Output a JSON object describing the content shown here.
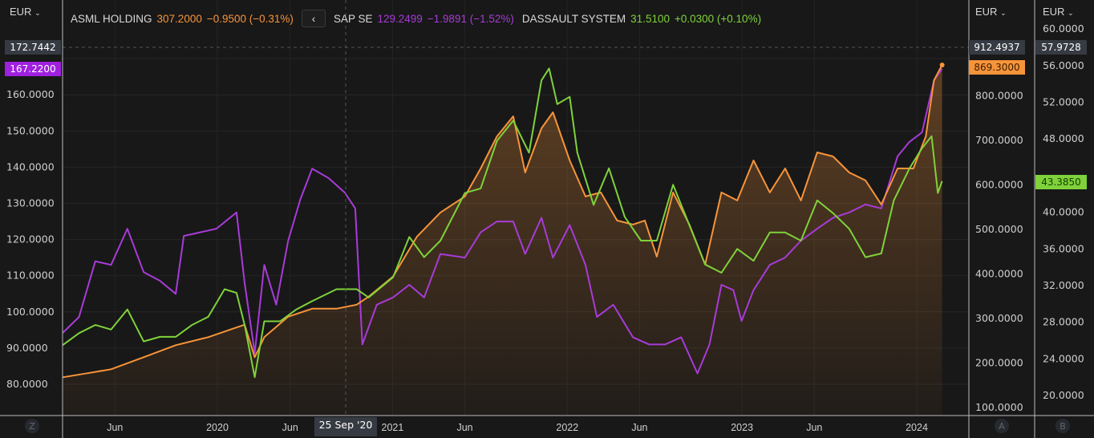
{
  "header": {
    "currency_left": "EUR",
    "currency_a": "EUR",
    "currency_b": "EUR",
    "collapse_icon": "chevron-left-icon"
  },
  "legend": [
    {
      "name": "ASML HOLDING",
      "value": "307.2000",
      "change": "−0.9500 (−0.31%)",
      "color": "#f7943a"
    },
    {
      "name": "SAP SE",
      "value": "129.2499",
      "change": "−1.9891 (−1.52%)",
      "color": "#a83bd8"
    },
    {
      "name": "DASSAULT SYSTEM",
      "value": "31.5100",
      "change": "+0.0300 (+0.10%)",
      "color": "#7fd23b"
    }
  ],
  "crosshair": {
    "date_label": "25 Sep '20",
    "left_value": "172.7442",
    "a_value": "912.4937",
    "b_value": "57.9728"
  },
  "last_price_tags": {
    "sap": "167.2200",
    "asml": "869.3000",
    "dassault": "43.3850"
  },
  "axis_buttons": {
    "left": "Z",
    "a": "A",
    "b": "B"
  },
  "chart_data": {
    "type": "line",
    "x_ticks": [
      {
        "label": "Jun",
        "date": "2019-06-01"
      },
      {
        "label": "2020",
        "date": "2020-01-01"
      },
      {
        "label": "Jun",
        "date": "2020-06-01"
      },
      {
        "label": "2021",
        "date": "2021-01-01"
      },
      {
        "label": "Jun",
        "date": "2021-06-01"
      },
      {
        "label": "2022",
        "date": "2022-01-01"
      },
      {
        "label": "Jun",
        "date": "2022-06-01"
      },
      {
        "label": "2023",
        "date": "2023-01-01"
      },
      {
        "label": "Jun",
        "date": "2023-06-01"
      },
      {
        "label": "2024",
        "date": "2024-01-01"
      }
    ],
    "axes": {
      "left": {
        "ticks": [
          "80.0000",
          "90.0000",
          "100.0000",
          "110.0000",
          "120.0000",
          "130.0000",
          "140.0000",
          "150.0000",
          "160.0000",
          "170.0000"
        ],
        "values": [
          80,
          90,
          100,
          110,
          120,
          130,
          140,
          150,
          160,
          170
        ]
      },
      "A": {
        "ticks": [
          "100.0000",
          "200.0000",
          "300.0000",
          "400.0000",
          "500.0000",
          "600.0000",
          "700.0000",
          "800.0000"
        ],
        "values": [
          100,
          200,
          300,
          400,
          500,
          600,
          700,
          800
        ]
      },
      "B": {
        "ticks": [
          "20.0000",
          "24.0000",
          "28.0000",
          "32.0000",
          "36.0000",
          "40.0000",
          "44.0000",
          "48.0000",
          "52.0000",
          "56.0000",
          "60.0000"
        ],
        "values": [
          20,
          24,
          28,
          32,
          36,
          40,
          44,
          48,
          52,
          56,
          60
        ]
      }
    },
    "grid": true,
    "series": [
      {
        "name": "SAP SE",
        "axis": "left",
        "color": "#a83bd8",
        "fill": false,
        "points": [
          [
            "2019-02-12",
            94.2
          ],
          [
            "2019-03-18",
            98.6
          ],
          [
            "2019-04-21",
            114
          ],
          [
            "2019-05-24",
            113
          ],
          [
            "2019-06-27",
            123
          ],
          [
            "2019-07-31",
            111
          ],
          [
            "2019-09-03",
            108.6
          ],
          [
            "2019-10-06",
            105
          ],
          [
            "2019-10-23",
            121
          ],
          [
            "2019-11-26",
            122
          ],
          [
            "2019-12-30",
            123
          ],
          [
            "2020-02-10",
            127.5
          ],
          [
            "2020-02-27",
            108
          ],
          [
            "2020-03-19",
            88.6
          ],
          [
            "2020-04-08",
            113
          ],
          [
            "2020-05-03",
            102
          ],
          [
            "2020-05-28",
            119.7
          ],
          [
            "2020-06-22",
            131
          ],
          [
            "2020-07-17",
            139.6
          ],
          [
            "2020-08-20",
            137
          ],
          [
            "2020-09-23",
            133
          ],
          [
            "2020-10-15",
            128.6
          ],
          [
            "2020-10-30",
            91
          ],
          [
            "2020-11-29",
            102
          ],
          [
            "2021-01-02",
            104
          ],
          [
            "2021-02-05",
            107.5
          ],
          [
            "2021-03-08",
            104
          ],
          [
            "2021-04-11",
            116
          ],
          [
            "2021-06-01",
            115
          ],
          [
            "2021-07-04",
            122
          ],
          [
            "2021-08-07",
            125
          ],
          [
            "2021-09-10",
            125
          ],
          [
            "2021-10-05",
            116
          ],
          [
            "2021-11-08",
            126
          ],
          [
            "2021-12-02",
            115
          ],
          [
            "2022-01-06",
            124
          ],
          [
            "2022-02-08",
            113
          ],
          [
            "2022-03-04",
            98.6
          ],
          [
            "2022-04-07",
            102
          ],
          [
            "2022-05-18",
            93
          ],
          [
            "2022-06-21",
            91
          ],
          [
            "2022-07-24",
            91
          ],
          [
            "2022-08-27",
            93
          ],
          [
            "2022-09-30",
            83
          ],
          [
            "2022-10-25",
            91
          ],
          [
            "2022-11-19",
            107.5
          ],
          [
            "2022-12-14",
            106
          ],
          [
            "2022-12-31",
            97.5
          ],
          [
            "2023-01-25",
            106
          ],
          [
            "2023-02-28",
            113
          ],
          [
            "2023-04-01",
            115
          ],
          [
            "2023-05-04",
            119.7
          ],
          [
            "2023-06-07",
            123
          ],
          [
            "2023-07-10",
            126
          ],
          [
            "2023-08-13",
            127.5
          ],
          [
            "2023-09-16",
            129.7
          ],
          [
            "2023-10-19",
            128.6
          ],
          [
            "2023-11-22",
            143
          ],
          [
            "2023-12-17",
            147
          ],
          [
            "2024-01-12",
            149.6
          ],
          [
            "2024-02-06",
            164
          ],
          [
            "2024-02-23",
            167.2
          ]
        ]
      },
      {
        "name": "ASML HOLDING",
        "axis": "A",
        "color": "#f7943a",
        "fill": true,
        "points": [
          [
            "2019-02-12",
            168
          ],
          [
            "2019-04-04",
            177
          ],
          [
            "2019-05-24",
            186
          ],
          [
            "2019-07-31",
            213
          ],
          [
            "2019-10-06",
            240
          ],
          [
            "2019-12-13",
            258
          ],
          [
            "2020-02-02",
            277
          ],
          [
            "2020-02-27",
            286
          ],
          [
            "2020-03-19",
            213
          ],
          [
            "2020-04-08",
            258
          ],
          [
            "2020-05-28",
            304
          ],
          [
            "2020-07-17",
            322
          ],
          [
            "2020-09-06",
            322
          ],
          [
            "2020-10-18",
            331
          ],
          [
            "2020-11-12",
            349
          ],
          [
            "2021-01-02",
            394
          ],
          [
            "2021-02-21",
            484
          ],
          [
            "2021-04-11",
            538
          ],
          [
            "2021-06-01",
            574
          ],
          [
            "2021-07-04",
            637
          ],
          [
            "2021-08-07",
            709
          ],
          [
            "2021-09-10",
            754
          ],
          [
            "2021-10-05",
            628
          ],
          [
            "2021-11-08",
            727
          ],
          [
            "2021-12-02",
            763
          ],
          [
            "2022-01-06",
            655
          ],
          [
            "2022-02-08",
            574
          ],
          [
            "2022-03-12",
            583
          ],
          [
            "2022-04-15",
            520
          ],
          [
            "2022-05-18",
            511
          ],
          [
            "2022-06-12",
            520
          ],
          [
            "2022-07-07",
            439
          ],
          [
            "2022-08-10",
            583
          ],
          [
            "2022-09-13",
            511
          ],
          [
            "2022-10-16",
            421
          ],
          [
            "2022-11-19",
            583
          ],
          [
            "2022-12-22",
            565
          ],
          [
            "2023-01-25",
            655
          ],
          [
            "2023-02-28",
            583
          ],
          [
            "2023-04-01",
            637
          ],
          [
            "2023-05-04",
            565
          ],
          [
            "2023-06-07",
            673
          ],
          [
            "2023-07-10",
            664
          ],
          [
            "2023-08-13",
            628
          ],
          [
            "2023-09-16",
            610
          ],
          [
            "2023-10-19",
            556
          ],
          [
            "2023-11-22",
            637
          ],
          [
            "2023-12-25",
            637
          ],
          [
            "2024-01-20",
            709
          ],
          [
            "2024-02-06",
            835
          ],
          [
            "2024-02-23",
            869.3
          ]
        ]
      },
      {
        "name": "DASSAULT SYSTEM",
        "axis": "B",
        "color": "#7fd23b",
        "fill": false,
        "points": [
          [
            "2019-02-12",
            25.5
          ],
          [
            "2019-03-18",
            26.8
          ],
          [
            "2019-04-21",
            27.7
          ],
          [
            "2019-05-24",
            27.2
          ],
          [
            "2019-06-27",
            29.4
          ],
          [
            "2019-07-31",
            25.9
          ],
          [
            "2019-09-03",
            26.4
          ],
          [
            "2019-10-06",
            26.4
          ],
          [
            "2019-11-09",
            27.7
          ],
          [
            "2019-12-13",
            28.6
          ],
          [
            "2020-01-16",
            31.6
          ],
          [
            "2020-02-10",
            31.2
          ],
          [
            "2020-02-27",
            27.7
          ],
          [
            "2020-03-19",
            22
          ],
          [
            "2020-04-08",
            28.1
          ],
          [
            "2020-05-11",
            28.1
          ],
          [
            "2020-06-14",
            29.4
          ],
          [
            "2020-07-17",
            30.3
          ],
          [
            "2020-09-06",
            31.6
          ],
          [
            "2020-10-18",
            31.6
          ],
          [
            "2020-11-12",
            30.7
          ],
          [
            "2021-01-02",
            32.9
          ],
          [
            "2021-02-05",
            37.3
          ],
          [
            "2021-03-08",
            35.1
          ],
          [
            "2021-04-11",
            36.9
          ],
          [
            "2021-06-01",
            42.1
          ],
          [
            "2021-07-04",
            42.6
          ],
          [
            "2021-08-07",
            47.8
          ],
          [
            "2021-09-10",
            50
          ],
          [
            "2021-10-13",
            46.5
          ],
          [
            "2021-11-08",
            54.4
          ],
          [
            "2021-11-24",
            55.7
          ],
          [
            "2021-12-11",
            51.8
          ],
          [
            "2022-01-06",
            52.6
          ],
          [
            "2022-01-22",
            46.5
          ],
          [
            "2022-02-25",
            40.8
          ],
          [
            "2022-03-29",
            44.8
          ],
          [
            "2022-05-01",
            39.5
          ],
          [
            "2022-06-04",
            36.9
          ],
          [
            "2022-07-07",
            36.9
          ],
          [
            "2022-08-10",
            43
          ],
          [
            "2022-09-13",
            38.6
          ],
          [
            "2022-10-16",
            34.3
          ],
          [
            "2022-11-19",
            33.4
          ],
          [
            "2022-12-22",
            36
          ],
          [
            "2023-01-25",
            34.7
          ],
          [
            "2023-02-28",
            37.8
          ],
          [
            "2023-04-01",
            37.8
          ],
          [
            "2023-05-04",
            36.9
          ],
          [
            "2023-06-07",
            41.3
          ],
          [
            "2023-07-10",
            39.9
          ],
          [
            "2023-08-13",
            38.2
          ],
          [
            "2023-09-16",
            35.1
          ],
          [
            "2023-10-19",
            35.5
          ],
          [
            "2023-11-14",
            41.3
          ],
          [
            "2023-12-17",
            44.8
          ],
          [
            "2024-01-12",
            47
          ],
          [
            "2024-02-01",
            48.3
          ],
          [
            "2024-02-14",
            42.1
          ],
          [
            "2024-02-23",
            43.4
          ]
        ]
      }
    ]
  }
}
